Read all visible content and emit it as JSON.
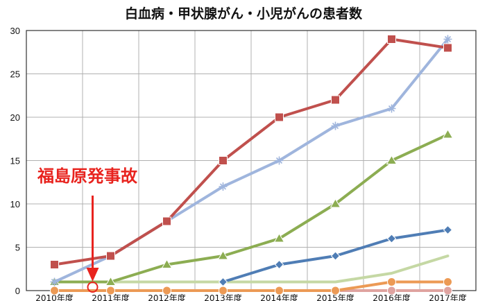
{
  "chart_data": {
    "type": "line",
    "title": "白血病・甲状腺がん・小児がんの患者数",
    "categories": [
      "2010年度",
      "2011年度",
      "2012年度",
      "2013年度",
      "2014年度",
      "2015年度",
      "2016年度",
      "2017年度"
    ],
    "ylim": [
      0,
      30
    ],
    "yticks": [
      0,
      5,
      10,
      15,
      20,
      25,
      30
    ],
    "grid": true,
    "legend": "none",
    "series": [
      {
        "color": "#c0504d",
        "marker": "square",
        "values": [
          3,
          4,
          8,
          15,
          20,
          22,
          29,
          28
        ]
      },
      {
        "color": "#9fb5dd",
        "marker": "star",
        "values": [
          1,
          4,
          8,
          12,
          15,
          19,
          21,
          29
        ]
      },
      {
        "color": "#8cad52",
        "marker": "triangle",
        "values": [
          1,
          1,
          3,
          4,
          6,
          10,
          15,
          18
        ]
      },
      {
        "color": "#4f7db5",
        "marker": "diamond",
        "values": [
          null,
          null,
          null,
          1,
          3,
          4,
          6,
          7
        ]
      },
      {
        "color": "#c5d8a4",
        "marker": "none",
        "values": [
          1,
          1,
          1,
          1,
          1,
          1,
          2,
          4
        ]
      },
      {
        "color": "#ec9a55",
        "marker": "circle",
        "values": [
          0,
          0,
          0,
          0,
          0,
          0,
          1,
          1
        ]
      },
      {
        "color": "#dfa3a0",
        "marker": "circle",
        "values": [
          0,
          0,
          0,
          0,
          0,
          0,
          0,
          0
        ]
      }
    ],
    "annotation": {
      "text": "福島原発事故",
      "color": "#e8231e",
      "position": 1
    }
  }
}
